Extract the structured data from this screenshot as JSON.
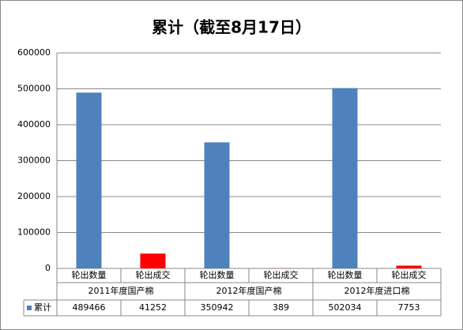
{
  "chart_data": {
    "type": "bar",
    "title": "累计（截至8月17日）",
    "categories": [
      "轮出数量",
      "轮出成交",
      "轮出数量",
      "轮出成交",
      "轮出数量",
      "轮出成交"
    ],
    "groups": [
      "2011年度国产棉",
      "2012年度国产棉",
      "2012年度进口棉"
    ],
    "series": [
      {
        "name": "累计",
        "color": "#4f81bd",
        "colors": [
          "#4f81bd",
          "#ff0000",
          "#4f81bd",
          "#ff0000",
          "#4f81bd",
          "#ff0000"
        ],
        "values": [
          489466,
          41252,
          350942,
          389,
          502034,
          7753
        ]
      }
    ],
    "ylim": [
      0,
      600000
    ],
    "yticks": [
      0,
      100000,
      200000,
      300000,
      400000,
      500000,
      600000
    ],
    "grid": true
  }
}
